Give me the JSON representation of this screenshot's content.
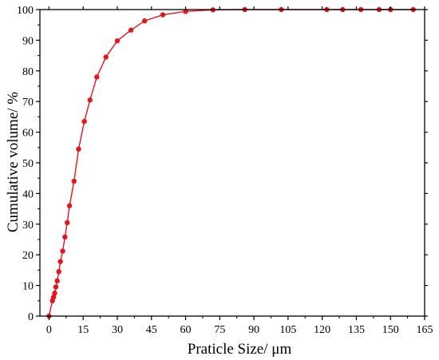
{
  "chart_data": {
    "type": "line",
    "title": "",
    "xlabel": "Praticle Size/ μm",
    "ylabel": "Cumulative volume/ %",
    "xlim": [
      -4,
      165
    ],
    "ylim": [
      0,
      100
    ],
    "x_ticks": [
      0,
      15,
      30,
      45,
      60,
      75,
      90,
      105,
      120,
      135,
      150,
      165
    ],
    "y_ticks": [
      0,
      10,
      20,
      30,
      40,
      50,
      60,
      70,
      80,
      90,
      100
    ],
    "grid": false,
    "legend": "none",
    "color": "#e8141b",
    "series": [
      {
        "x": [
          0,
          1.5,
          2.0,
          2.5,
          3.0,
          3.6,
          4.3,
          5.0,
          6.0,
          7.0,
          8.0,
          9.0,
          11.0,
          13.0,
          15.5,
          18.0,
          21.0,
          25.0,
          30.0,
          36.0,
          42.0,
          50.0,
          60.0,
          72.0,
          86.0,
          102.0,
          122.0,
          129.0,
          137.0,
          145.0,
          150.0,
          160.0
        ],
        "y": [
          0,
          5.0,
          6.2,
          7.5,
          9.5,
          11.5,
          14.5,
          17.8,
          21.2,
          25.8,
          30.5,
          36.0,
          44.0,
          54.5,
          63.5,
          70.5,
          78.0,
          84.5,
          89.8,
          93.3,
          96.3,
          98.3,
          99.4,
          99.9,
          100,
          100,
          100,
          100,
          100,
          100,
          100,
          100
        ]
      }
    ]
  }
}
